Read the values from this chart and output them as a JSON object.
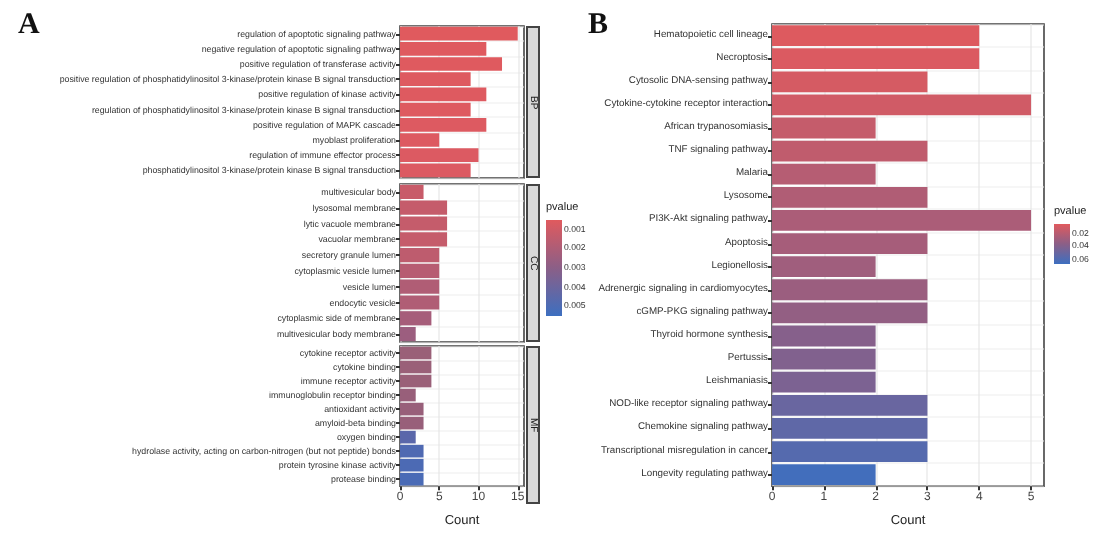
{
  "chart_data": [
    {
      "type": "bar",
      "orientation": "horizontal",
      "title": "A",
      "annotations": [
        "BP"
      ],
      "categories": [
        "regulation of apoptotic signaling pathway",
        "negative regulation of apoptotic signaling pathway",
        "positive regulation of transferase activity",
        "positive regulation of phosphatidylinositol 3-kinase/protein kinase B signal transduction",
        "positive regulation of kinase activity",
        "regulation of phosphatidylinositol 3-kinase/protein kinase B signal transduction",
        "positive regulation of MAPK cascade",
        "myoblast proliferation",
        "regulation of immune effector process",
        "phosphatidylinositol 3-kinase/protein kinase B signal transduction"
      ],
      "values": [
        15,
        11,
        13,
        9,
        11,
        9,
        11,
        5,
        10,
        9
      ],
      "colors": [
        "#e05a5e",
        "#df5a5f",
        "#df5a5f",
        "#de5a60",
        "#de5a60",
        "#de5a60",
        "#dd5a61",
        "#dd5a61",
        "#dc5a62",
        "#dc5a62"
      ],
      "xlim": [
        0,
        15.8
      ],
      "xticks": [
        0,
        5,
        10,
        15
      ],
      "tick_labels": "y",
      "grid": true
    },
    {
      "type": "bar",
      "orientation": "horizontal",
      "annotations": [
        "CC"
      ],
      "categories": [
        "multivesicular body",
        "lysosomal membrane",
        "lytic vacuole membrane",
        "vacuolar membrane",
        "secretory granule lumen",
        "cytoplasmic vesicle lumen",
        "vesicle lumen",
        "endocytic vesicle",
        "cytoplasmic side of membrane",
        "multivesicular body membrane"
      ],
      "values": [
        3,
        6,
        6,
        6,
        5,
        5,
        5,
        5,
        4,
        2
      ],
      "cvalues": [
        0.0012,
        0.0013,
        0.0013,
        0.0013,
        0.0015,
        0.0017,
        0.0019,
        0.0019,
        0.0022,
        0.0025
      ],
      "clim": [
        0.0005,
        0.0055
      ],
      "cticks": [
        0.001,
        0.002,
        0.003,
        0.004,
        0.005
      ],
      "clabel": "pvalue",
      "xlim": [
        0,
        15.8
      ],
      "xticks": [
        0,
        5,
        10,
        15
      ],
      "tick_labels": "y",
      "grid": true
    },
    {
      "type": "bar",
      "orientation": "horizontal",
      "annotations": [
        "MF"
      ],
      "xlabel": "Count",
      "categories": [
        "cytokine receptor activity",
        "cytokine binding",
        "immune receptor activity",
        "immunoglobulin receptor binding",
        "antioxidant activity",
        "amyloid-beta binding",
        "oxygen binding",
        "hydrolase activity, acting on carbon-nitrogen (but not peptide) bonds",
        "protein tyrosine kinase activity",
        "protease binding"
      ],
      "values": [
        4,
        4,
        4,
        2,
        3,
        3,
        2,
        3,
        3,
        3
      ],
      "colors": [
        "#9a6078",
        "#9a6078",
        "#9a6078",
        "#985f7a",
        "#985f7a",
        "#985f7a",
        "#5a67aa",
        "#4f69b2",
        "#4c6ab4",
        "#4a6bb6"
      ],
      "xlim": [
        0,
        15.8
      ],
      "xticks": [
        0,
        5,
        10,
        15
      ],
      "grid": true
    },
    {
      "type": "bar",
      "orientation": "horizontal",
      "title": "B",
      "xlabel": "Count",
      "clabel": "pvalue",
      "categories": [
        "Hematopoietic cell lineage",
        "Necroptosis",
        "Cytosolic DNA-sensing pathway",
        "Cytokine-cytokine receptor interaction",
        "African trypanosomiasis",
        "TNF signaling pathway",
        "Malaria",
        "Lysosome",
        "PI3K-Akt signaling pathway",
        "Apoptosis",
        "Legionellosis",
        "Adrenergic signaling in cardiomyocytes",
        "cGMP-PKG signaling pathway",
        "Thyroid hormone synthesis",
        "Pertussis",
        "Leishmaniasis",
        "NOD-like receptor signaling pathway",
        "Chemokine signaling pathway",
        "Transcriptional misregulation in cancer",
        "Longevity regulating pathway"
      ],
      "values": [
        4,
        4,
        3,
        5,
        2,
        3,
        2,
        3,
        5,
        3,
        2,
        3,
        3,
        2,
        2,
        2,
        3,
        3,
        3,
        2
      ],
      "cvalues": [
        0.005,
        0.006,
        0.008,
        0.01,
        0.014,
        0.016,
        0.02,
        0.022,
        0.024,
        0.026,
        0.028,
        0.03,
        0.033,
        0.038,
        0.04,
        0.042,
        0.05,
        0.054,
        0.058,
        0.066
      ],
      "clim": [
        0.004,
        0.068
      ],
      "cticks": [
        0.02,
        0.04,
        0.06
      ],
      "xlim": [
        0,
        5.25
      ],
      "xticks": [
        0,
        1,
        2,
        3,
        4,
        5
      ],
      "grid": true
    }
  ]
}
